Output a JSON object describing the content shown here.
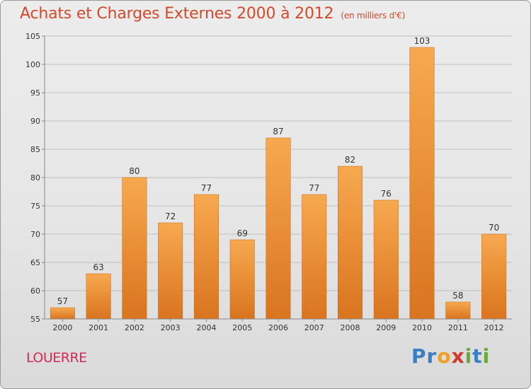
{
  "header": {
    "title": "Achats et Charges Externes 2000 à 2012",
    "subtitle": "(en milliers d'€)"
  },
  "footer": {
    "commune": "LOUERRE",
    "logo_letters": [
      "P",
      "r",
      "o",
      "x",
      "i",
      "t",
      "i"
    ],
    "logo_colors": [
      "#3a7fc4",
      "#3a7fc4",
      "#f0a020",
      "#d23a2a",
      "#6aa83a",
      "#3a7fc4",
      "#6aa83a"
    ]
  },
  "colors": {
    "bar_light": "#f7a94f",
    "bar_dark": "#d9741f",
    "text": "#333333",
    "grid": "#bfbfbf",
    "axis": "#888888"
  },
  "chart_data": {
    "type": "bar",
    "title": "Achats et Charges Externes 2000 à 2012",
    "subtitle": "(en milliers d'€)",
    "categories": [
      "2000",
      "2001",
      "2002",
      "2003",
      "2004",
      "2005",
      "2006",
      "2007",
      "2008",
      "2009",
      "2010",
      "2011",
      "2012"
    ],
    "values": [
      57,
      63,
      80,
      72,
      77,
      69,
      87,
      77,
      82,
      76,
      103,
      58,
      70
    ],
    "ylim": [
      55,
      105
    ],
    "yticks": [
      55,
      60,
      65,
      70,
      75,
      80,
      85,
      90,
      95,
      100,
      105
    ],
    "grid": "horizontal",
    "data_labels": true
  }
}
